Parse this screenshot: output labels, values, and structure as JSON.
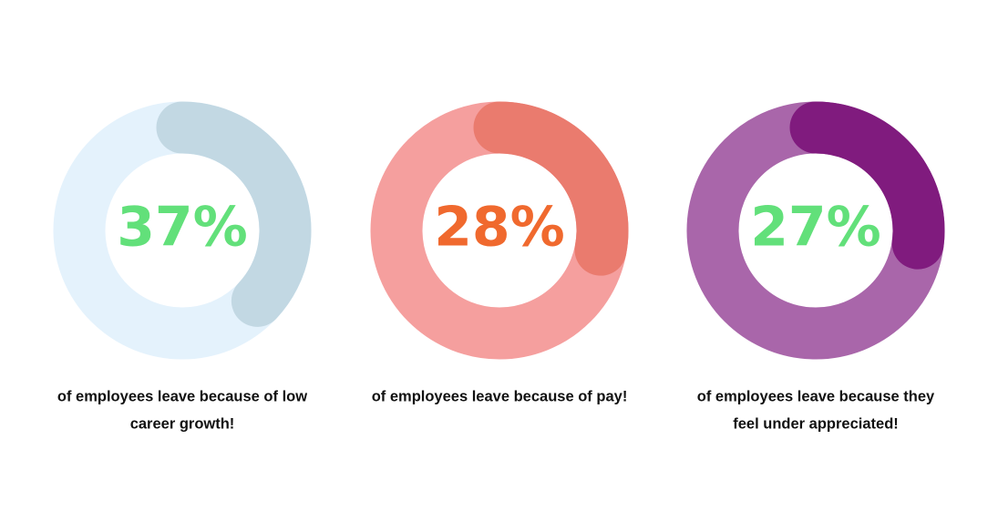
{
  "chart_data": [
    {
      "type": "donut",
      "values": [
        37
      ],
      "value_labels": [
        "37%"
      ],
      "caption": [
        "of employees leave because of low",
        "career growth!"
      ],
      "color": "#c2d8e3",
      "track_color": "#e4f2fc",
      "label_color": "#62e07a"
    },
    {
      "type": "donut",
      "values": [
        28
      ],
      "value_labels": [
        "28%"
      ],
      "caption": [
        "of employees leave because of pay!"
      ],
      "color": "#ea7b6e",
      "track_color": "#f59f9e",
      "label_color": "#f0692e"
    },
    {
      "type": "donut",
      "values": [
        27
      ],
      "value_labels": [
        "27%"
      ],
      "caption": [
        "of employees leave because they",
        "feel under appreciated!"
      ],
      "color": "#801b7e",
      "track_color": "#a966aa",
      "label_color": "#62e07a"
    }
  ]
}
